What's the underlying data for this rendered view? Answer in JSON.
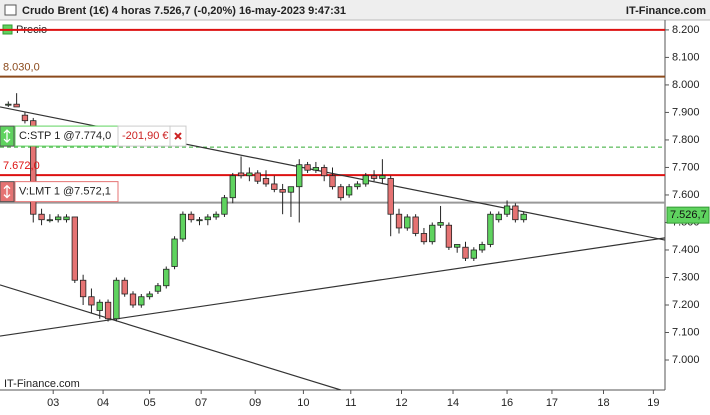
{
  "header": {
    "title": "Crudo Brent (1€) 4 horas 7.526,7 (-0,20%) 16-may-2023 9:47:31",
    "brand": "IT-Finance.com"
  },
  "footer": "IT-Finance.com",
  "chart_data": {
    "type": "candlestick",
    "series_name": "Precio",
    "up_color": "#5fd35f",
    "down_color": "#e57373",
    "x": [
      1,
      2,
      3,
      4,
      5,
      6,
      7,
      8,
      9,
      10,
      11,
      12,
      13,
      14,
      15,
      16,
      17,
      18,
      19,
      20,
      21,
      22,
      23,
      24,
      25,
      26,
      27,
      28,
      29,
      30,
      31,
      32,
      33,
      34,
      35,
      36,
      37,
      38,
      39,
      40,
      41,
      42,
      43,
      44,
      45,
      46,
      47,
      48,
      49,
      50,
      51,
      52,
      53,
      54,
      55,
      56,
      57,
      58,
      59,
      60,
      61,
      62,
      63
    ],
    "open": [
      7.93,
      7.93,
      7.89,
      7.87,
      7.53,
      7.51,
      7.51,
      7.51,
      7.52,
      7.29,
      7.23,
      7.18,
      7.21,
      7.15,
      7.29,
      7.24,
      7.2,
      7.23,
      7.25,
      7.27,
      7.34,
      7.44,
      7.53,
      7.51,
      7.51,
      7.52,
      7.53,
      7.59,
      7.68,
      7.67,
      7.68,
      7.66,
      7.64,
      7.62,
      7.61,
      7.63,
      7.71,
      7.69,
      7.7,
      7.67,
      7.63,
      7.6,
      7.63,
      7.64,
      7.67,
      7.66,
      7.66,
      7.53,
      7.48,
      7.52,
      7.46,
      7.43,
      7.49,
      7.49,
      7.41,
      7.41,
      7.37,
      7.4,
      7.42,
      7.51,
      7.53,
      7.56,
      7.51
    ],
    "high": [
      7.94,
      7.97,
      7.9,
      7.88,
      7.55,
      7.53,
      7.53,
      7.53,
      7.52,
      7.31,
      7.26,
      7.22,
      7.22,
      7.3,
      7.3,
      7.25,
      7.24,
      7.25,
      7.28,
      7.34,
      7.45,
      7.54,
      7.54,
      7.52,
      7.53,
      7.54,
      7.6,
      7.68,
      7.74,
      7.7,
      7.69,
      7.69,
      7.67,
      7.64,
      7.63,
      7.73,
      7.72,
      7.72,
      7.71,
      7.7,
      7.64,
      7.64,
      7.65,
      7.68,
      7.69,
      7.73,
      7.67,
      7.55,
      7.53,
      7.53,
      7.48,
      7.5,
      7.56,
      7.5,
      7.42,
      7.43,
      7.41,
      7.43,
      7.54,
      7.54,
      7.58,
      7.57,
      7.54
    ],
    "low": [
      7.92,
      7.92,
      7.86,
      7.5,
      7.49,
      7.5,
      7.5,
      7.5,
      7.28,
      7.2,
      7.17,
      7.15,
      7.14,
      7.14,
      7.23,
      7.19,
      7.19,
      7.22,
      7.24,
      7.26,
      7.33,
      7.43,
      7.5,
      7.49,
      7.49,
      7.51,
      7.52,
      7.57,
      7.66,
      7.65,
      7.64,
      7.63,
      7.61,
      7.53,
      7.52,
      7.5,
      7.68,
      7.68,
      7.65,
      7.62,
      7.58,
      7.59,
      7.62,
      7.63,
      7.65,
      7.64,
      7.45,
      7.46,
      7.47,
      7.45,
      7.42,
      7.42,
      7.48,
      7.4,
      7.39,
      7.36,
      7.36,
      7.39,
      7.41,
      7.5,
      7.52,
      7.5,
      7.5
    ],
    "close": [
      7.93,
      7.92,
      7.87,
      7.53,
      7.51,
      7.51,
      7.52,
      7.52,
      7.29,
      7.23,
      7.2,
      7.21,
      7.15,
      7.29,
      7.24,
      7.2,
      7.23,
      7.24,
      7.27,
      7.33,
      7.44,
      7.53,
      7.51,
      7.51,
      7.52,
      7.53,
      7.59,
      7.67,
      7.67,
      7.68,
      7.65,
      7.64,
      7.62,
      7.61,
      7.63,
      7.71,
      7.69,
      7.7,
      7.67,
      7.63,
      7.59,
      7.63,
      7.64,
      7.67,
      7.66,
      7.67,
      7.53,
      7.48,
      7.52,
      7.46,
      7.43,
      7.49,
      7.5,
      7.41,
      7.42,
      7.37,
      7.4,
      7.42,
      7.53,
      7.53,
      7.56,
      7.51,
      7.53
    ],
    "xlim": [
      0,
      80
    ],
    "ylim": [
      6.891,
      8.236
    ],
    "xticks": [
      {
        "value": 6.4,
        "label": "03"
      },
      {
        "value": 12.4,
        "label": "04"
      },
      {
        "value": 18,
        "label": "05"
      },
      {
        "value": 24.2,
        "label": "07"
      },
      {
        "value": 30.7,
        "label": "09"
      },
      {
        "value": 36.5,
        "label": "10"
      },
      {
        "value": 42.2,
        "label": "11"
      },
      {
        "value": 48.3,
        "label": "12"
      },
      {
        "value": 54.5,
        "label": "14"
      },
      {
        "value": 61,
        "label": "16"
      },
      {
        "value": 66.4,
        "label": "17"
      },
      {
        "value": 72.6,
        "label": "18"
      },
      {
        "value": 78.6,
        "label": "19"
      }
    ],
    "yticks": [
      {
        "value": 7.0,
        "label": "7.000"
      },
      {
        "value": 7.1,
        "label": "7.100"
      },
      {
        "value": 7.2,
        "label": "7.200"
      },
      {
        "value": 7.3,
        "label": "7.300"
      },
      {
        "value": 7.4,
        "label": "7.400"
      },
      {
        "value": 7.5,
        "label": "7.500"
      },
      {
        "value": 7.6,
        "label": "7.600"
      },
      {
        "value": 7.7,
        "label": "7.700"
      },
      {
        "value": 7.8,
        "label": "7.800"
      },
      {
        "value": 7.9,
        "label": "7.900"
      },
      {
        "value": 8.0,
        "label": "8.000"
      },
      {
        "value": 8.1,
        "label": "8.100"
      },
      {
        "value": 8.2,
        "label": "8.200"
      }
    ],
    "levels": [
      {
        "value": 8.2,
        "color": "#dd1111"
      },
      {
        "value": 8.03,
        "label": "8.030,0",
        "color": "#8b4a1c"
      },
      {
        "value": 7.774,
        "color": "#33aa33",
        "dashed": true
      },
      {
        "value": 7.672,
        "label": "7.672,0",
        "color": "#dd1111"
      },
      {
        "value": 7.5721,
        "color": "#999999"
      }
    ],
    "orders": [
      {
        "value": 7.774,
        "label": "C:STP 1 @7.774,0",
        "pnl": "-201,90 €",
        "color": "#5fd35f"
      },
      {
        "value": 7.5721,
        "label": "V:LMT 1 @7.572,1",
        "color": "#e57373"
      }
    ],
    "trendlines": [
      {
        "x": [
          0,
          80
        ],
        "y": [
          7.92,
          7.436
        ]
      },
      {
        "x": [
          0,
          41
        ],
        "y": [
          7.273,
          6.891
        ]
      },
      {
        "x": [
          0,
          80
        ],
        "y": [
          7.087,
          7.444
        ]
      }
    ],
    "last_price": {
      "value": 7.5267,
      "label": "7.526,7"
    }
  }
}
